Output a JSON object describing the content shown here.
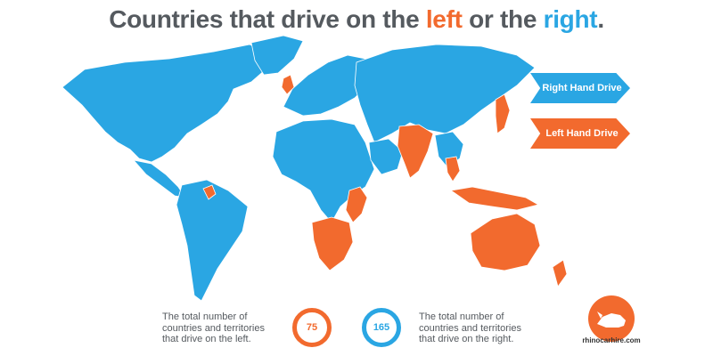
{
  "title": {
    "prefix": "Countries that drive on the ",
    "left_word": "left",
    "middle": " or the ",
    "right_word": "right",
    "suffix": "."
  },
  "legend": {
    "right_hand_label": "Right Hand Drive",
    "left_hand_label": "Left Hand Drive"
  },
  "stats": {
    "left_text_lines": [
      "The total number of",
      "countries and territories",
      "that drive on the left."
    ],
    "left_count": "75",
    "right_count": "165",
    "right_text_lines": [
      "The total number of",
      "countries and territories",
      "that drive on the right."
    ]
  },
  "branding": {
    "logo_text": "rhinocarhire.com",
    "logo_icon": "rhino-icon"
  },
  "colors": {
    "right_hand_drive": "#2aa6e3",
    "left_hand_drive": "#f26a2e",
    "title_text": "#555a5f"
  }
}
